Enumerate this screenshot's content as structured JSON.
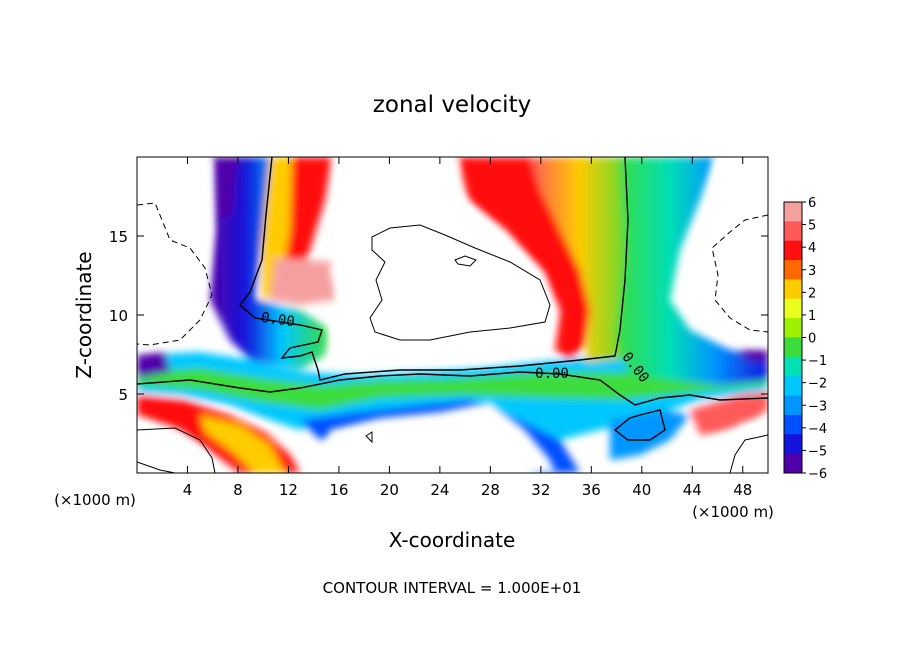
{
  "chart_data": {
    "type": "heatmap",
    "title": "zonal velocity",
    "xlabel": "X-coordinate",
    "ylabel": "Z-coordinate",
    "x_unit_left": "(×1000 m)",
    "x_unit_right": "(×1000 m)",
    "xlim": [
      0,
      50
    ],
    "ylim": [
      0,
      20
    ],
    "x_ticks": [
      4,
      8,
      12,
      16,
      20,
      24,
      28,
      32,
      36,
      40,
      44,
      48
    ],
    "x_tick_labels": [
      "4",
      "8",
      "12",
      "16",
      "20",
      "24",
      "28",
      "32",
      "36",
      "40",
      "44",
      "48"
    ],
    "y_ticks": [
      5,
      10,
      15
    ],
    "y_tick_labels": [
      "5",
      "10",
      "15"
    ],
    "colorbar": {
      "min": -6,
      "max": 6,
      "tick_labels": [
        "6",
        "5",
        "4",
        "3",
        "2",
        "1",
        "0",
        "−1",
        "−2",
        "−3",
        "−4",
        "−5",
        "−6"
      ],
      "colors": [
        "#f5a0a0",
        "#ff5a5a",
        "#ff1010",
        "#ff6a00",
        "#ffcc00",
        "#eaff20",
        "#9cf000",
        "#3cdc3c",
        "#00e0b4",
        "#00c8ff",
        "#0096ff",
        "#0050ff",
        "#1414dc",
        "#5000aa"
      ]
    },
    "contour_labels": [
      "0.00",
      "0.00",
      "0.00"
    ],
    "annotation": "CONTOUR INTERVAL = 1.000E+01"
  }
}
